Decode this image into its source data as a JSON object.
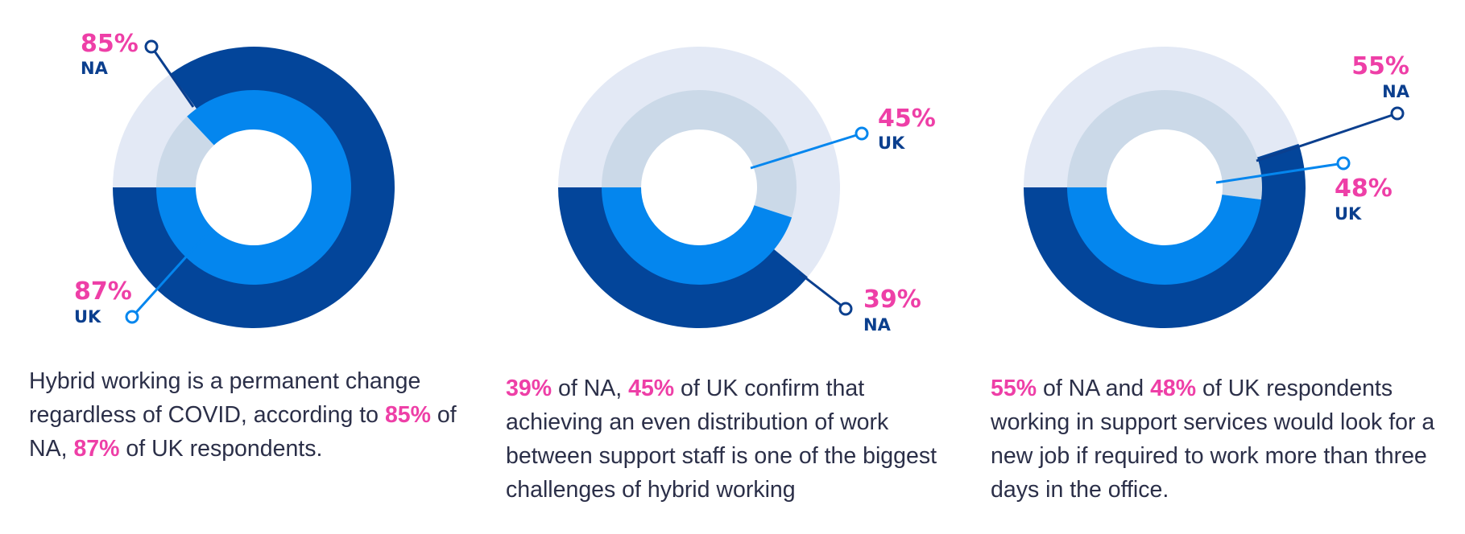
{
  "colors": {
    "na_dark": "#03459a",
    "na_light": "#e3e9f5",
    "uk_bright": "#0486ee",
    "uk_light": "#cbd9e8",
    "highlight_pink": "#ee3fa7",
    "label_navy": "#0b3f8e",
    "text": "#2b2f48"
  },
  "chart_data": [
    {
      "type": "pie",
      "series": [
        {
          "name": "NA",
          "values": [
            85,
            15
          ]
        },
        {
          "name": "UK",
          "values": [
            87,
            13
          ]
        }
      ],
      "annotations": [
        {
          "series": "NA",
          "value_text": "85%",
          "label": "NA"
        },
        {
          "series": "UK",
          "value_text": "87%",
          "label": "UK"
        }
      ],
      "caption": {
        "parts": [
          {
            "text": "Hybrid working is a permanent change regardless of COVID, according to ",
            "highlight": false
          },
          {
            "text": "85%",
            "highlight": true
          },
          {
            "text": " of NA, ",
            "highlight": false
          },
          {
            "text": "87%",
            "highlight": true
          },
          {
            "text": " of UK respondents.",
            "highlight": false
          }
        ]
      }
    },
    {
      "type": "pie",
      "series": [
        {
          "name": "NA",
          "values": [
            39,
            61
          ]
        },
        {
          "name": "UK",
          "values": [
            45,
            55
          ]
        }
      ],
      "annotations": [
        {
          "series": "UK",
          "value_text": "45%",
          "label": "UK"
        },
        {
          "series": "NA",
          "value_text": "39%",
          "label": "NA"
        }
      ],
      "caption": {
        "parts": [
          {
            "text": "39%",
            "highlight": true
          },
          {
            "text": " of NA, ",
            "highlight": false
          },
          {
            "text": "45%",
            "highlight": true
          },
          {
            "text": " of UK confirm that achieving an even distribution of work between support staff is one of the biggest challenges of hybrid working",
            "highlight": false
          }
        ]
      }
    },
    {
      "type": "pie",
      "series": [
        {
          "name": "NA",
          "values": [
            55,
            45
          ]
        },
        {
          "name": "UK",
          "values": [
            48,
            52
          ]
        }
      ],
      "annotations": [
        {
          "series": "NA",
          "value_text": "55%",
          "label": "NA"
        },
        {
          "series": "UK",
          "value_text": "48%",
          "label": "UK"
        }
      ],
      "caption": {
        "parts": [
          {
            "text": "55%",
            "highlight": true
          },
          {
            "text": " of NA and ",
            "highlight": false
          },
          {
            "text": "48%",
            "highlight": true
          },
          {
            "text": " of UK respondents working in support services would look for a new job if required to work more than three days in the office.",
            "highlight": false
          }
        ]
      }
    }
  ]
}
